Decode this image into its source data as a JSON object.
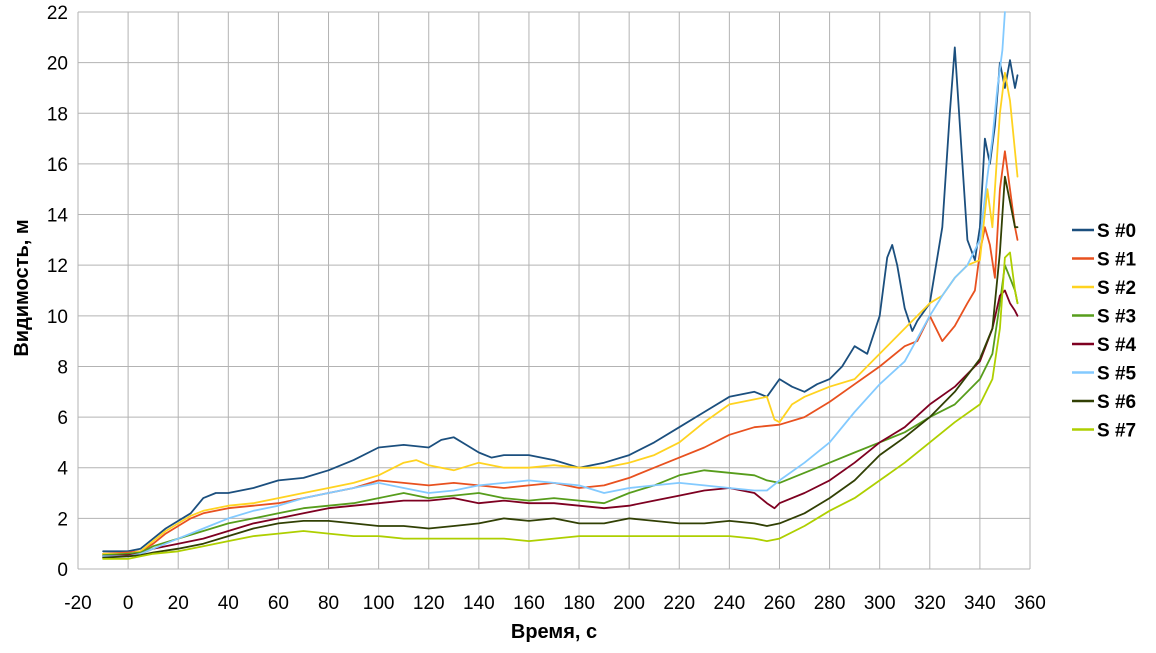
{
  "chart_data": {
    "type": "line",
    "xlabel": "Время, с",
    "ylabel": "Видимость, м",
    "xlim": [
      -20,
      360
    ],
    "ylim": [
      0,
      22
    ],
    "x_ticks": [
      -20,
      0,
      20,
      40,
      60,
      80,
      100,
      120,
      140,
      160,
      180,
      200,
      220,
      240,
      260,
      280,
      300,
      320,
      340,
      360
    ],
    "y_ticks": [
      0,
      2,
      4,
      6,
      8,
      10,
      12,
      14,
      16,
      18,
      20,
      22
    ],
    "grid": true,
    "legend_position": "right",
    "series": [
      {
        "name": "S #0",
        "color": "#1b4f7e",
        "x": [
          -10,
          0,
          5,
          10,
          15,
          20,
          25,
          30,
          35,
          40,
          50,
          60,
          70,
          80,
          90,
          100,
          110,
          120,
          125,
          130,
          135,
          140,
          145,
          150,
          160,
          170,
          180,
          190,
          200,
          210,
          220,
          230,
          240,
          250,
          255,
          260,
          265,
          270,
          275,
          280,
          285,
          290,
          295,
          300,
          303,
          305,
          307,
          310,
          313,
          315,
          320,
          325,
          328,
          330,
          333,
          335,
          338,
          340,
          342,
          344,
          346,
          348,
          350,
          352,
          354,
          355
        ],
        "y": [
          0.7,
          0.7,
          0.8,
          1.2,
          1.6,
          1.9,
          2.2,
          2.8,
          3.0,
          3.0,
          3.2,
          3.5,
          3.6,
          3.9,
          4.3,
          4.8,
          4.9,
          4.8,
          5.1,
          5.2,
          4.9,
          4.6,
          4.4,
          4.5,
          4.5,
          4.3,
          4.0,
          4.2,
          4.5,
          5.0,
          5.6,
          6.2,
          6.8,
          7.0,
          6.8,
          7.5,
          7.2,
          7.0,
          7.3,
          7.5,
          8.0,
          8.8,
          8.5,
          10.0,
          12.3,
          12.8,
          12.0,
          10.3,
          9.4,
          9.8,
          10.5,
          13.5,
          18.0,
          20.6,
          16.0,
          13.0,
          12.2,
          13.5,
          17.0,
          16.0,
          17.5,
          20.0,
          19.0,
          20.1,
          19.0,
          19.5
        ]
      },
      {
        "name": "S #1",
        "color": "#e8511f",
        "x": [
          -10,
          0,
          5,
          10,
          15,
          20,
          25,
          30,
          40,
          50,
          60,
          70,
          80,
          90,
          100,
          110,
          120,
          130,
          140,
          150,
          160,
          170,
          180,
          190,
          200,
          210,
          220,
          230,
          240,
          250,
          260,
          270,
          280,
          290,
          300,
          310,
          315,
          320,
          325,
          330,
          335,
          338,
          340,
          342,
          344,
          346,
          348,
          350,
          352,
          354,
          355
        ],
        "y": [
          0.6,
          0.65,
          0.7,
          1.0,
          1.4,
          1.7,
          2.0,
          2.2,
          2.4,
          2.5,
          2.6,
          2.8,
          3.0,
          3.2,
          3.5,
          3.4,
          3.3,
          3.4,
          3.3,
          3.2,
          3.3,
          3.4,
          3.2,
          3.3,
          3.6,
          4.0,
          4.4,
          4.8,
          5.3,
          5.6,
          5.7,
          6.0,
          6.6,
          7.3,
          8.0,
          8.8,
          9.0,
          10.0,
          9.0,
          9.6,
          10.5,
          11.0,
          12.5,
          13.5,
          12.8,
          11.5,
          15.0,
          16.5,
          15.0,
          13.5,
          13.0
        ]
      },
      {
        "name": "S #2",
        "color": "#ffd320",
        "x": [
          -10,
          0,
          5,
          10,
          15,
          20,
          25,
          30,
          40,
          50,
          60,
          70,
          80,
          90,
          100,
          110,
          115,
          120,
          130,
          140,
          150,
          160,
          170,
          180,
          190,
          200,
          210,
          220,
          230,
          240,
          250,
          255,
          258,
          260,
          265,
          270,
          280,
          290,
          300,
          310,
          320,
          325,
          330,
          335,
          340,
          343,
          345,
          348,
          350,
          352,
          354,
          355
        ],
        "y": [
          0.6,
          0.6,
          0.7,
          1.1,
          1.5,
          1.8,
          2.1,
          2.3,
          2.5,
          2.6,
          2.8,
          3.0,
          3.2,
          3.4,
          3.7,
          4.2,
          4.3,
          4.1,
          3.9,
          4.2,
          4.0,
          4.0,
          4.1,
          4.0,
          4.0,
          4.2,
          4.5,
          5.0,
          5.8,
          6.5,
          6.7,
          6.8,
          5.9,
          5.8,
          6.5,
          6.8,
          7.2,
          7.5,
          8.5,
          9.5,
          10.5,
          10.8,
          11.5,
          12.0,
          12.2,
          15.0,
          13.5,
          18.0,
          19.6,
          18.5,
          16.5,
          15.5
        ]
      },
      {
        "name": "S #3",
        "color": "#579d1c",
        "x": [
          -10,
          0,
          5,
          10,
          20,
          30,
          40,
          50,
          60,
          70,
          80,
          90,
          100,
          110,
          120,
          130,
          140,
          150,
          160,
          170,
          180,
          190,
          200,
          210,
          220,
          230,
          240,
          250,
          255,
          260,
          270,
          280,
          290,
          300,
          310,
          320,
          330,
          335,
          340,
          345,
          348,
          350,
          352,
          354,
          355
        ],
        "y": [
          0.55,
          0.6,
          0.65,
          0.9,
          1.2,
          1.5,
          1.8,
          2.0,
          2.2,
          2.4,
          2.5,
          2.6,
          2.8,
          3.0,
          2.8,
          2.9,
          3.0,
          2.8,
          2.7,
          2.8,
          2.7,
          2.6,
          3.0,
          3.3,
          3.7,
          3.9,
          3.8,
          3.7,
          3.5,
          3.4,
          3.8,
          4.2,
          4.6,
          5.0,
          5.4,
          6.0,
          6.5,
          7.0,
          7.5,
          8.5,
          10.5,
          12.0,
          11.5,
          11.0,
          10.5
        ]
      },
      {
        "name": "S #4",
        "color": "#7e0021",
        "x": [
          -10,
          0,
          5,
          10,
          20,
          30,
          40,
          50,
          60,
          70,
          80,
          90,
          100,
          110,
          120,
          130,
          140,
          150,
          160,
          170,
          180,
          190,
          200,
          210,
          220,
          230,
          240,
          250,
          255,
          258,
          260,
          270,
          280,
          290,
          300,
          310,
          320,
          330,
          340,
          345,
          348,
          350,
          352,
          354,
          355
        ],
        "y": [
          0.5,
          0.55,
          0.6,
          0.8,
          1.0,
          1.2,
          1.5,
          1.8,
          2.0,
          2.2,
          2.4,
          2.5,
          2.6,
          2.7,
          2.7,
          2.8,
          2.6,
          2.7,
          2.6,
          2.6,
          2.5,
          2.4,
          2.5,
          2.7,
          2.9,
          3.1,
          3.2,
          3.0,
          2.6,
          2.4,
          2.6,
          3.0,
          3.5,
          4.2,
          5.0,
          5.6,
          6.5,
          7.2,
          8.2,
          9.5,
          10.8,
          11.0,
          10.5,
          10.2,
          10.0
        ]
      },
      {
        "name": "S #5",
        "color": "#83caff",
        "x": [
          -10,
          0,
          5,
          10,
          15,
          20,
          30,
          40,
          50,
          60,
          70,
          80,
          90,
          100,
          110,
          120,
          130,
          140,
          150,
          160,
          170,
          180,
          190,
          200,
          210,
          220,
          230,
          240,
          250,
          255,
          260,
          270,
          280,
          290,
          300,
          310,
          320,
          325,
          330,
          335,
          340,
          343,
          345,
          347,
          349,
          350
        ],
        "y": [
          0.5,
          0.5,
          0.6,
          0.8,
          1.0,
          1.2,
          1.6,
          2.0,
          2.3,
          2.5,
          2.8,
          3.0,
          3.2,
          3.4,
          3.2,
          3.0,
          3.1,
          3.3,
          3.4,
          3.5,
          3.4,
          3.3,
          3.0,
          3.2,
          3.3,
          3.4,
          3.3,
          3.2,
          3.1,
          3.1,
          3.5,
          4.2,
          5.0,
          6.2,
          7.3,
          8.2,
          10.0,
          10.8,
          11.5,
          12.0,
          13.0,
          15.5,
          17.0,
          19.0,
          20.5,
          22.0
        ]
      },
      {
        "name": "S #6",
        "color": "#314004",
        "x": [
          -10,
          0,
          5,
          10,
          20,
          30,
          40,
          50,
          60,
          70,
          80,
          90,
          100,
          110,
          120,
          130,
          140,
          150,
          160,
          170,
          180,
          190,
          200,
          210,
          220,
          230,
          240,
          250,
          255,
          260,
          270,
          280,
          290,
          300,
          310,
          320,
          330,
          340,
          345,
          348,
          350,
          352,
          354,
          355
        ],
        "y": [
          0.45,
          0.5,
          0.55,
          0.65,
          0.8,
          1.0,
          1.3,
          1.6,
          1.8,
          1.9,
          1.9,
          1.8,
          1.7,
          1.7,
          1.6,
          1.7,
          1.8,
          2.0,
          1.9,
          2.0,
          1.8,
          1.8,
          2.0,
          1.9,
          1.8,
          1.8,
          1.9,
          1.8,
          1.7,
          1.8,
          2.2,
          2.8,
          3.5,
          4.5,
          5.2,
          6.0,
          7.0,
          8.3,
          9.5,
          12.5,
          15.5,
          14.5,
          13.5,
          13.5
        ]
      },
      {
        "name": "S #7",
        "color": "#aecf00",
        "x": [
          -10,
          0,
          5,
          10,
          20,
          30,
          40,
          50,
          60,
          70,
          80,
          90,
          100,
          110,
          120,
          130,
          140,
          150,
          160,
          170,
          180,
          190,
          200,
          210,
          220,
          230,
          240,
          250,
          255,
          260,
          270,
          280,
          290,
          300,
          310,
          320,
          330,
          340,
          345,
          348,
          350,
          352,
          354,
          355
        ],
        "y": [
          0.4,
          0.4,
          0.5,
          0.6,
          0.7,
          0.9,
          1.1,
          1.3,
          1.4,
          1.5,
          1.4,
          1.3,
          1.3,
          1.2,
          1.2,
          1.2,
          1.2,
          1.2,
          1.1,
          1.2,
          1.3,
          1.3,
          1.3,
          1.3,
          1.3,
          1.3,
          1.3,
          1.2,
          1.1,
          1.2,
          1.7,
          2.3,
          2.8,
          3.5,
          4.2,
          5.0,
          5.8,
          6.5,
          7.5,
          9.5,
          12.3,
          12.5,
          11.0,
          10.5
        ]
      }
    ]
  }
}
